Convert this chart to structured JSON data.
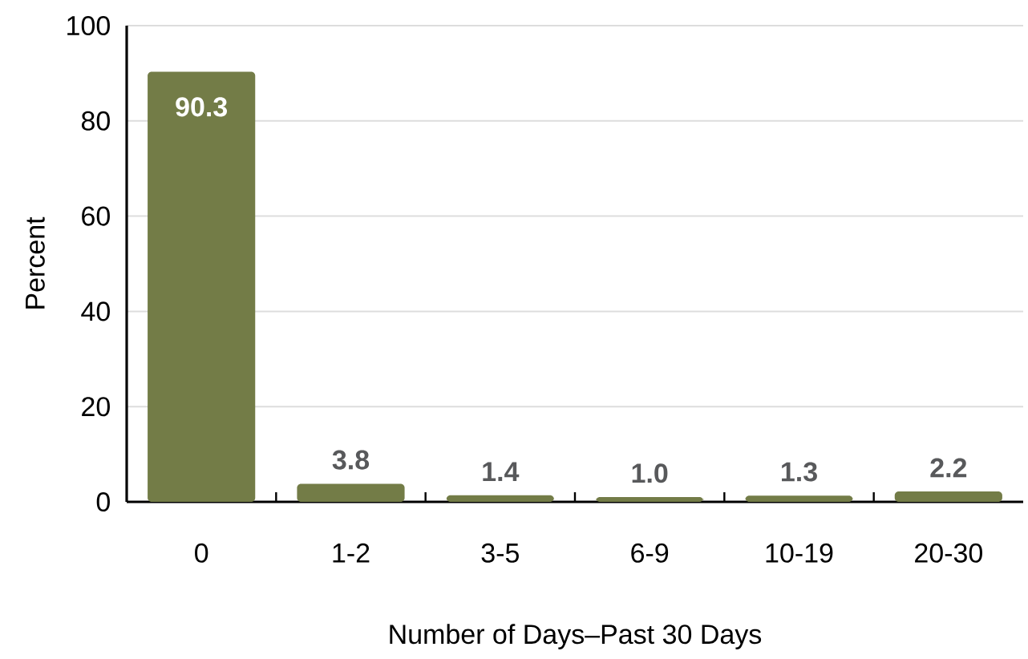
{
  "chart_data": {
    "type": "bar",
    "xlabel": "Number of Days–Past 30 Days",
    "ylabel": "Percent",
    "categories": [
      "0",
      "1-2",
      "3-5",
      "6-9",
      "10-19",
      "20-30"
    ],
    "values": [
      90.3,
      3.8,
      1.4,
      1.0,
      1.3,
      2.2
    ],
    "value_labels": [
      "90.3",
      "3.8",
      "1.4",
      "1.0",
      "1.3",
      "2.2"
    ],
    "color": "#737c47",
    "ylim": [
      0,
      100
    ],
    "yticks": [
      0,
      20,
      40,
      60,
      80,
      100
    ],
    "grid": "y"
  }
}
